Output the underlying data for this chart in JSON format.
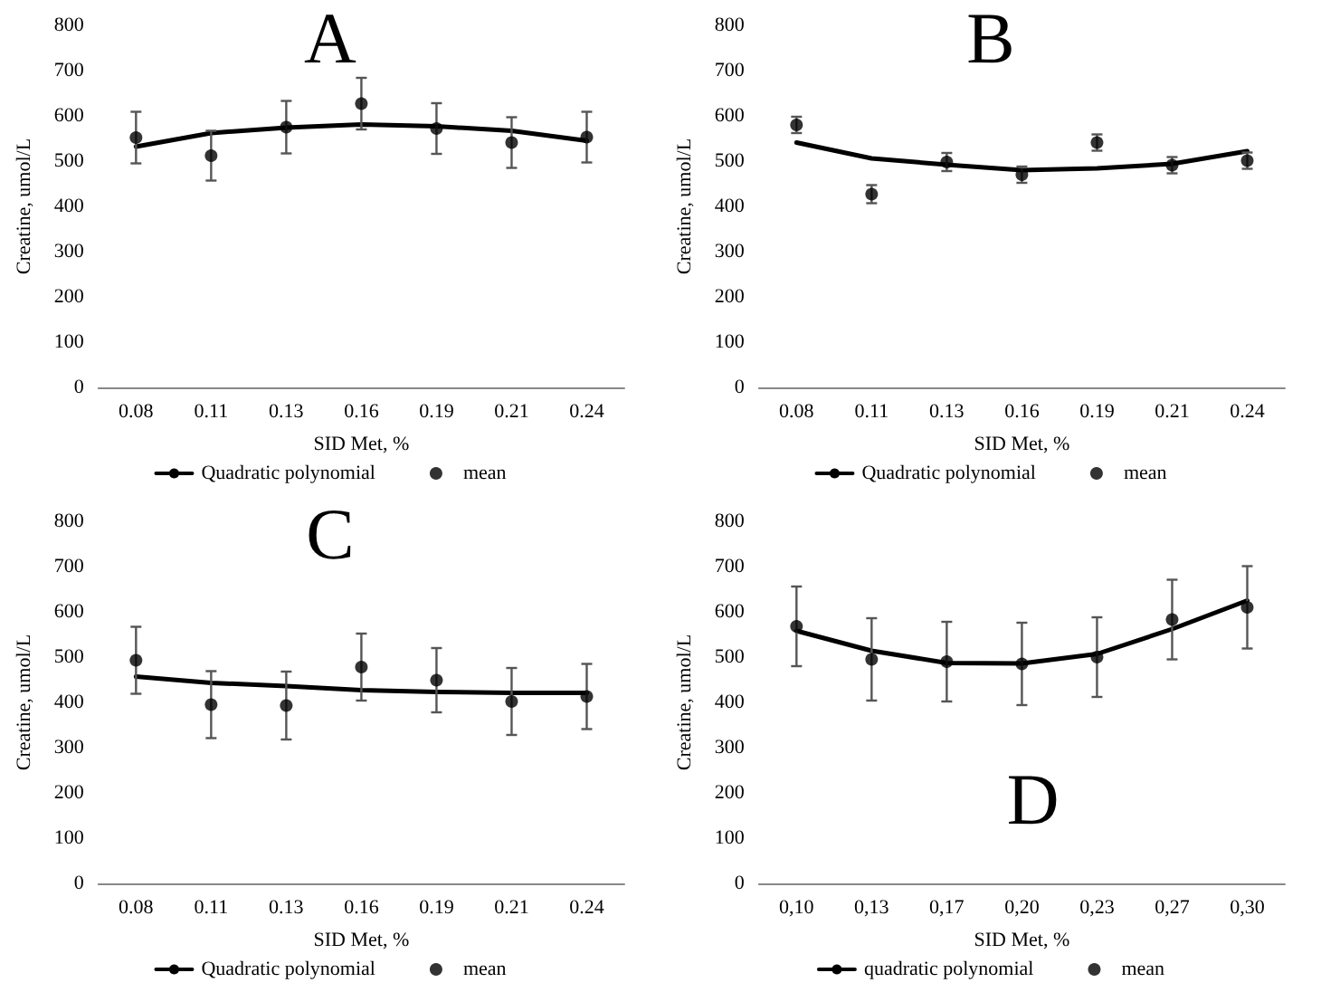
{
  "chart_data": [
    {
      "type": "line",
      "title": "A",
      "xlabel": "SID Met, %",
      "ylabel": "Creatine, umol/L",
      "categories": [
        "0.08",
        "0.11",
        "0.13",
        "0.16",
        "0.19",
        "0.21",
        "0.24"
      ],
      "ylim": [
        0,
        800
      ],
      "yticks": [
        0,
        100,
        200,
        300,
        400,
        500,
        600,
        700,
        800
      ],
      "grid": false,
      "legend": "bottom",
      "series": [
        {
          "name": "Quadratic polynomial",
          "color": "#000000",
          "marker": "none",
          "values": [
            532,
            562,
            574,
            581,
            577,
            567,
            545
          ]
        },
        {
          "name": "mean",
          "type": "scatter",
          "color": "#000000",
          "marker": "circle",
          "values": [
            552,
            512,
            575,
            627,
            572,
            541,
            553
          ],
          "errors": [
            57,
            55,
            58,
            57,
            56,
            56,
            56
          ]
        }
      ]
    },
    {
      "type": "line",
      "title": "B",
      "xlabel": "SID Met, %",
      "ylabel": "Creatine, umol/L",
      "categories": [
        "0.08",
        "0.11",
        "0.13",
        "0.16",
        "0.19",
        "0.21",
        "0.24"
      ],
      "ylim": [
        0,
        800
      ],
      "yticks": [
        0,
        100,
        200,
        300,
        400,
        500,
        600,
        700,
        800
      ],
      "grid": false,
      "legend": "bottom",
      "series": [
        {
          "name": "Quadratic polynomial",
          "color": "#000000",
          "marker": "none",
          "values": [
            541,
            506,
            492,
            480,
            484,
            494,
            522
          ]
        },
        {
          "name": "mean",
          "type": "scatter",
          "color": "#000000",
          "marker": "circle",
          "values": [
            580,
            427,
            498,
            470,
            541,
            491,
            501
          ],
          "errors": [
            18,
            20,
            20,
            18,
            18,
            18,
            18
          ]
        }
      ]
    },
    {
      "type": "line",
      "title": "C",
      "xlabel": "SID Met, %",
      "ylabel": "Creatine, umol/L",
      "categories": [
        "0.08",
        "0.11",
        "0.13",
        "0.16",
        "0.19",
        "0.21",
        "0.24"
      ],
      "ylim": [
        0,
        800
      ],
      "yticks": [
        0,
        100,
        200,
        300,
        400,
        500,
        600,
        700,
        800
      ],
      "grid": false,
      "legend": "bottom",
      "series": [
        {
          "name": "Quadratic polynomial",
          "color": "#000000",
          "marker": "none",
          "values": [
            457,
            443,
            436,
            427,
            423,
            421,
            421
          ]
        },
        {
          "name": "mean",
          "type": "scatter",
          "color": "#000000",
          "marker": "circle",
          "values": [
            493,
            395,
            393,
            478,
            449,
            402,
            413
          ],
          "errors": [
            74,
            74,
            75,
            74,
            71,
            74,
            72
          ]
        }
      ]
    },
    {
      "type": "line",
      "title": "D",
      "xlabel": "SID Met, %",
      "ylabel": "Creatine, umol/L",
      "categories": [
        "0,10",
        "0,13",
        "0,17",
        "0,20",
        "0,23",
        "0,27",
        "0,30"
      ],
      "ylim": [
        0,
        800
      ],
      "yticks": [
        0,
        100,
        200,
        300,
        400,
        500,
        600,
        700,
        800
      ],
      "grid": false,
      "legend": "bottom",
      "series": [
        {
          "name": "quadratic polynomial",
          "color": "#000000",
          "marker": "none",
          "values": [
            558,
            514,
            487,
            486,
            507,
            562,
            625
          ]
        },
        {
          "name": "mean",
          "type": "scatter",
          "color": "#000000",
          "marker": "circle",
          "values": [
            568,
            495,
            490,
            485,
            500,
            583,
            610
          ],
          "errors": [
            88,
            91,
            88,
            91,
            88,
            88,
            91
          ]
        }
      ]
    }
  ]
}
